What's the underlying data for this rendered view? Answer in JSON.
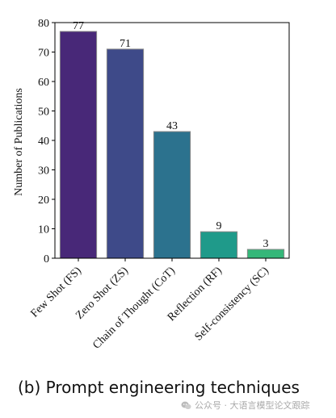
{
  "chart_data": {
    "type": "bar",
    "categories": [
      "Few Shot (FS)",
      "Zero Shot (ZS)",
      "Chain of Thought (CoT)",
      "Reflection (RF)",
      "Self-consistency (SC)"
    ],
    "values": [
      77,
      71,
      43,
      9,
      3
    ],
    "data_labels": [
      "77",
      "71",
      "43",
      "9",
      "3"
    ],
    "ylabel": "Number of Publications",
    "ylim": [
      0,
      80
    ],
    "yticks": [
      0,
      10,
      20,
      30,
      40,
      50,
      60,
      70,
      80
    ],
    "grid": false,
    "colors": [
      "#482878",
      "#3e4a89",
      "#2c728e",
      "#1f9a8a",
      "#35b779"
    ],
    "edge_color": "#888888"
  },
  "caption": "(b) Prompt engineering techniques",
  "watermark": {
    "text": "公众号 · 大语言模型论文跟踪",
    "icon": "wechat-icon"
  }
}
